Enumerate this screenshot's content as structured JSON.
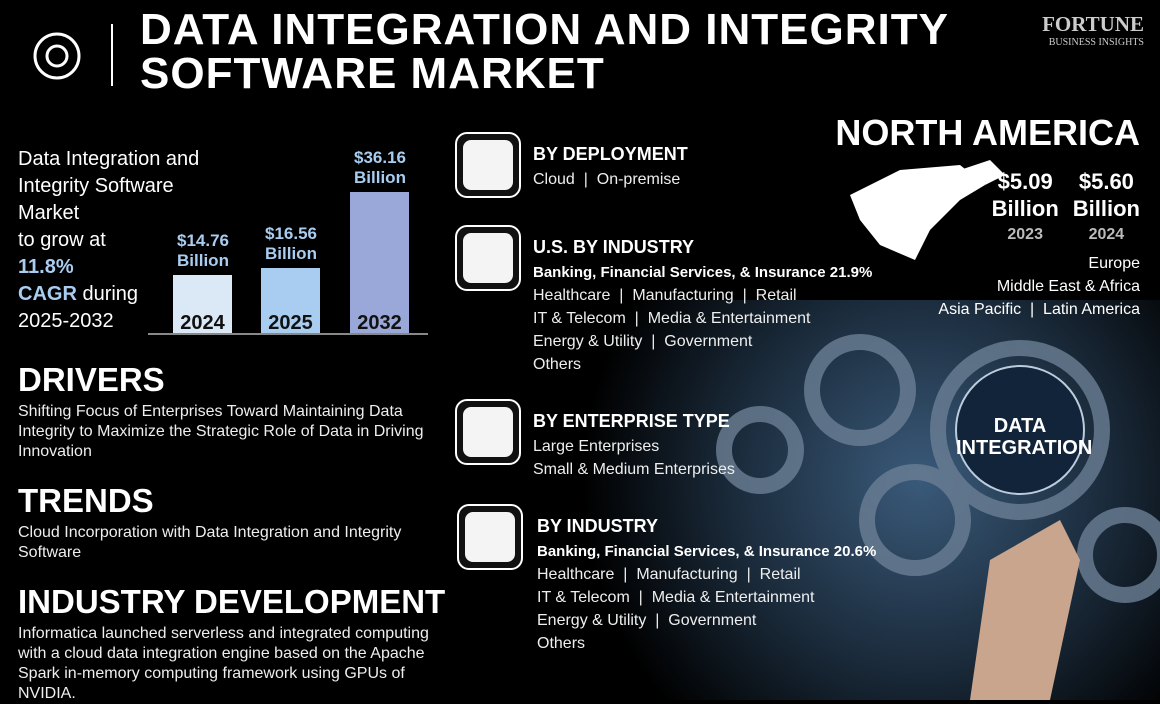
{
  "header": {
    "title_lines": [
      "DATA INTEGRATION AND INTEGRITY",
      "SOFTWARE MARKET"
    ],
    "logo": [
      "FORTUNE",
      "BUSINESS INSIGHTS"
    ]
  },
  "intro": {
    "lines": [
      "Data Integration and",
      "Integrity Software",
      "Market",
      "to grow at"
    ],
    "cagr_value": "11.8%",
    "cagr_label": "CAGR",
    "cagr_rest": "during",
    "period": "2025-2032"
  },
  "chart_data": {
    "type": "bar",
    "categories": [
      "2024",
      "2025",
      "2032"
    ],
    "values": [
      14.76,
      16.56,
      36.16
    ],
    "value_labels": [
      "$14.76 Billion",
      "$16.56 Billion",
      "$36.16 Billion"
    ],
    "colors": [
      "#dbe9f6",
      "#a9cdf0",
      "#9aa7d9"
    ]
  },
  "sections": [
    {
      "title": "DRIVERS",
      "text": "Shifting Focus of Enterprises Toward Maintaining Data Integrity to Maximize the Strategic Role of Data in Driving Innovation"
    },
    {
      "title": "TRENDS",
      "text": "Cloud Incorporation with Data Integration and Integrity Software"
    },
    {
      "title": "INDUSTRY DEVELOPMENT",
      "text": "Informatica launched serverless and integrated computing with a cloud data integration engine based on the Apache Spark in-memory computing framework using GPUs of NVIDIA."
    }
  ],
  "segments": [
    {
      "title": "BY DEPLOYMENT",
      "lines": [
        "Cloud  |  On-premise"
      ]
    },
    {
      "title": "U.S. BY INDUSTRY",
      "highlight": "Banking, Financial Services, & Insurance 21.9%",
      "lines": [
        "Healthcare  |  Manufacturing  |  Retail",
        "IT & Telecom  |  Media & Entertainment",
        "Energy & Utility  |  Government",
        "Others"
      ]
    },
    {
      "title": "BY ENTERPRISE TYPE",
      "lines": [
        "Large Enterprises",
        "Small & Medium Enterprises"
      ]
    },
    {
      "title": "BY INDUSTRY",
      "highlight": "Banking, Financial Services, & Insurance 20.6%",
      "lines": [
        "Healthcare  |  Manufacturing  |  Retail",
        "IT & Telecom  |  Media & Entertainment",
        "Energy & Utility  |  Government",
        "Others"
      ]
    }
  ],
  "region": {
    "name": "NORTH AMERICA",
    "values": [
      {
        "amount": "$5.09",
        "unit": "Billion",
        "year": "2023"
      },
      {
        "amount": "$5.60",
        "unit": "Billion",
        "year": "2024"
      }
    ],
    "others": [
      "Europe",
      "Middle East & Africa",
      "Asia Pacific  |  Latin America"
    ]
  },
  "image_label": [
    "DATA",
    "INTEGRATION"
  ]
}
